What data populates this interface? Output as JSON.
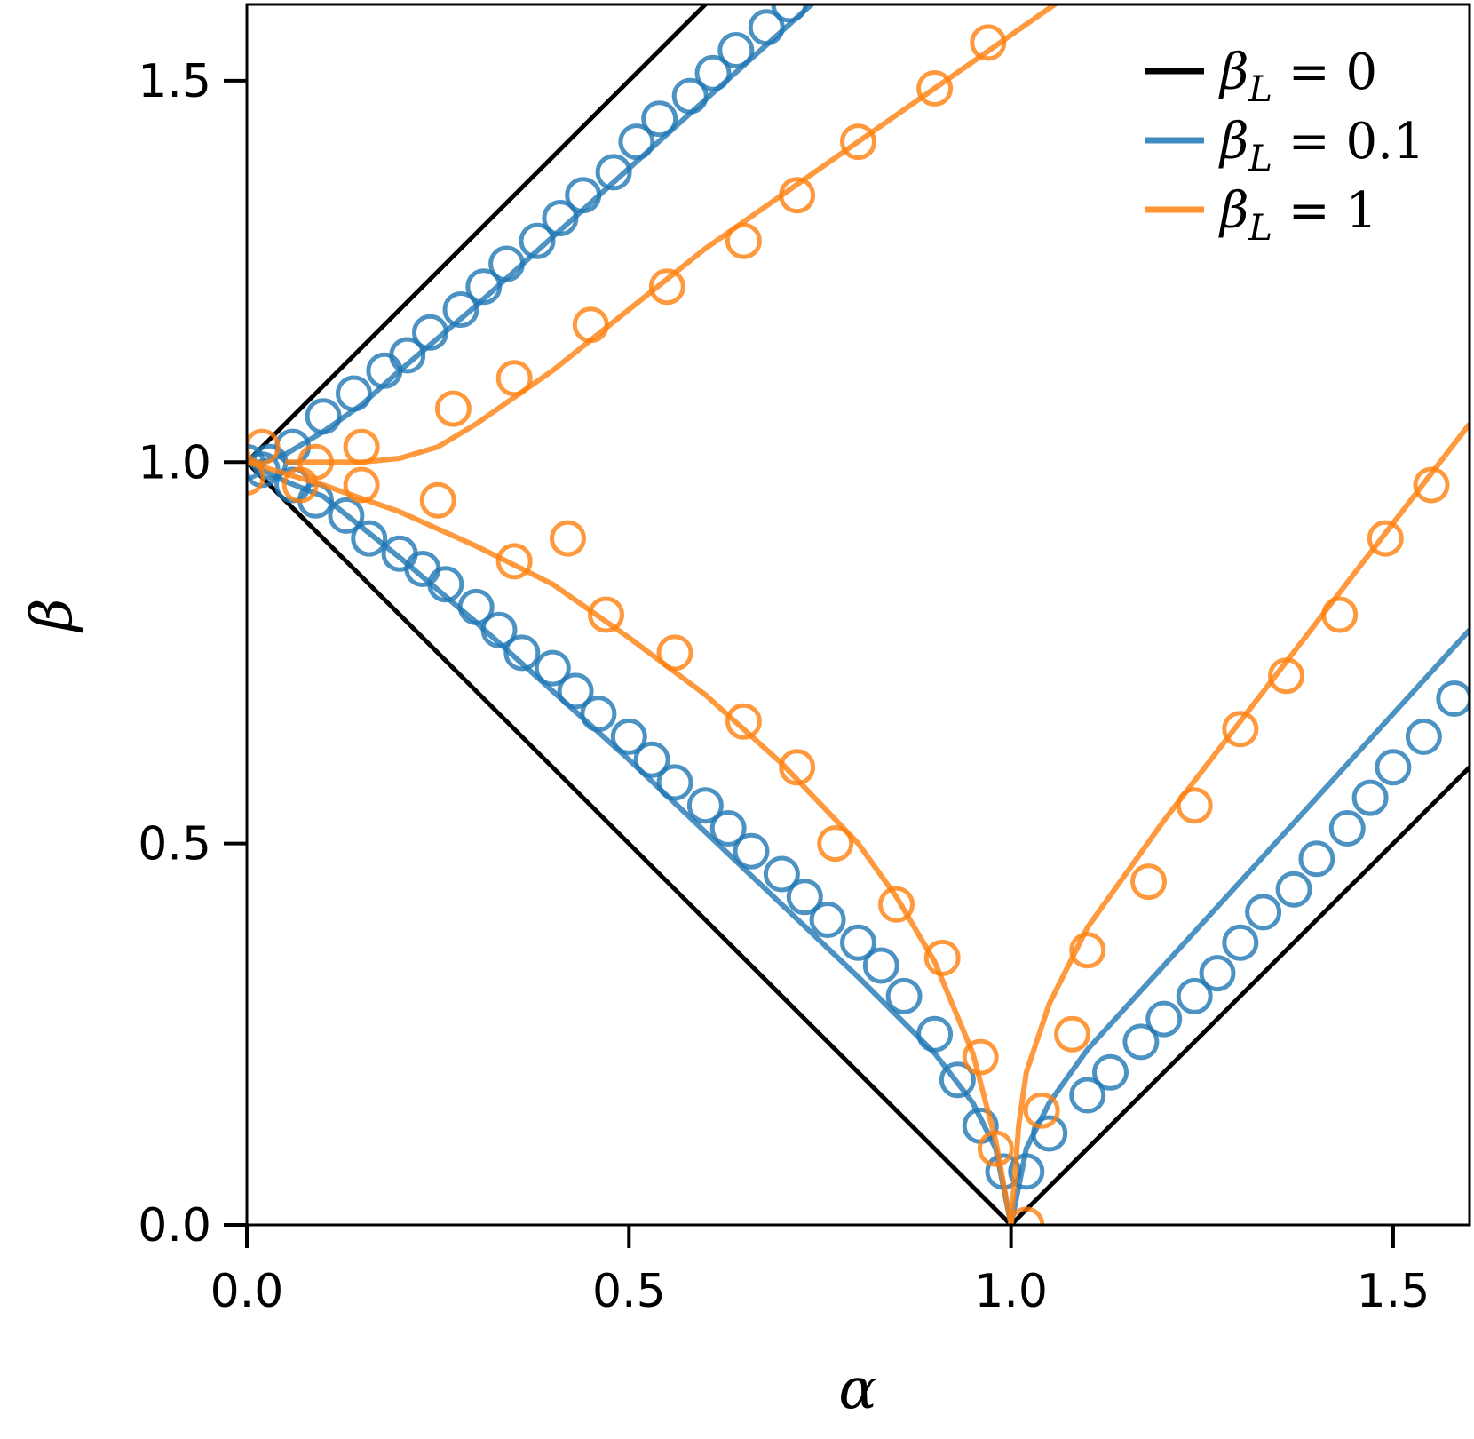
{
  "chart_data": {
    "type": "line",
    "xlabel": "α",
    "ylabel": "β",
    "xlim": [
      0,
      1.6
    ],
    "ylim": [
      0,
      1.6
    ],
    "xticks": [
      "0.0",
      "0.5",
      "1.0",
      "1.5"
    ],
    "yticks": [
      "0.0",
      "0.5",
      "1.0",
      "1.5"
    ],
    "grid": false,
    "legend_placement": "top-right",
    "series": [
      {
        "name": "β_L = 0",
        "legend": {
          "prefix": "β",
          "sub": "L",
          "rest": " = 0"
        },
        "color": "#000000",
        "lines": [
          {
            "x": [
              0,
              0.6
            ],
            "y": [
              1.0,
              1.6
            ]
          },
          {
            "x": [
              0,
              1.0
            ],
            "y": [
              1.0,
              0.0
            ]
          },
          {
            "x": [
              1.0,
              1.6
            ],
            "y": [
              0.0,
              0.6
            ]
          }
        ],
        "markers": []
      },
      {
        "name": "β_L = 0.1",
        "legend": {
          "prefix": "β",
          "sub": "L",
          "rest": " = 0.1"
        },
        "color": "#1f77b4",
        "lines": [
          {
            "x": [
              0.0,
              0.02,
              0.05,
              0.1,
              0.15,
              0.2,
              0.3,
              0.4,
              0.5,
              0.6,
              0.7,
              0.75,
              0.8
            ],
            "y": [
              1.0,
              1.0,
              1.01,
              1.04,
              1.075,
              1.12,
              1.205,
              1.295,
              1.385,
              1.475,
              1.565,
              1.61,
              1.655
            ]
          },
          {
            "x": [
              0.0,
              0.05,
              0.1,
              0.2,
              0.3,
              0.4,
              0.5,
              0.6,
              0.7,
              0.8,
              0.85,
              0.9,
              0.95,
              0.98,
              1.0
            ],
            "y": [
              1.0,
              0.975,
              0.955,
              0.875,
              0.79,
              0.7,
              0.61,
              0.515,
              0.42,
              0.325,
              0.275,
              0.225,
              0.16,
              0.1,
              0.0
            ]
          },
          {
            "x": [
              1.0,
              1.02,
              1.05,
              1.1,
              1.2,
              1.3,
              1.4,
              1.5,
              1.6
            ],
            "y": [
              0.0,
              0.1,
              0.16,
              0.23,
              0.34,
              0.45,
              0.56,
              0.67,
              0.78
            ]
          }
        ],
        "markers": [
          {
            "x": [
              0.0,
              0.03,
              0.06,
              0.1,
              0.14,
              0.18,
              0.21,
              0.24,
              0.28,
              0.31,
              0.34,
              0.38,
              0.41,
              0.44,
              0.48,
              0.51,
              0.54,
              0.58,
              0.61,
              0.64,
              0.68,
              0.71,
              0.74
            ],
            "y": [
              1.0,
              1.0,
              1.02,
              1.06,
              1.09,
              1.12,
              1.14,
              1.17,
              1.2,
              1.23,
              1.26,
              1.29,
              1.32,
              1.35,
              1.38,
              1.42,
              1.45,
              1.48,
              1.51,
              1.54,
              1.57,
              1.6,
              1.63
            ]
          },
          {
            "x": [
              0.02,
              0.06,
              0.09,
              0.13,
              0.16,
              0.2,
              0.23,
              0.26,
              0.3,
              0.33,
              0.36,
              0.4,
              0.43,
              0.46,
              0.5,
              0.53,
              0.56,
              0.6,
              0.63,
              0.66,
              0.7,
              0.73,
              0.76,
              0.8,
              0.83,
              0.86,
              0.9,
              0.93,
              0.96,
              0.99
            ],
            "y": [
              0.99,
              0.97,
              0.95,
              0.93,
              0.9,
              0.88,
              0.86,
              0.84,
              0.81,
              0.78,
              0.75,
              0.73,
              0.7,
              0.67,
              0.64,
              0.61,
              0.58,
              0.55,
              0.52,
              0.49,
              0.46,
              0.43,
              0.4,
              0.37,
              0.34,
              0.3,
              0.25,
              0.19,
              0.13,
              0.07
            ]
          },
          {
            "x": [
              1.02,
              1.05,
              1.1,
              1.13,
              1.17,
              1.2,
              1.24,
              1.27,
              1.3,
              1.33,
              1.37,
              1.4,
              1.44,
              1.47,
              1.5,
              1.54,
              1.58
            ],
            "y": [
              0.07,
              0.12,
              0.17,
              0.2,
              0.24,
              0.27,
              0.3,
              0.33,
              0.37,
              0.41,
              0.44,
              0.48,
              0.52,
              0.56,
              0.6,
              0.64,
              0.69
            ]
          }
        ]
      },
      {
        "name": "β_L = 1",
        "legend": {
          "prefix": "β",
          "sub": "L",
          "rest": " = 1"
        },
        "color": "#ff7f0e",
        "lines": [
          {
            "x": [
              0.05,
              0.1,
              0.15,
              0.2,
              0.25,
              0.3,
              0.4,
              0.5,
              0.6,
              0.7,
              0.8,
              0.9,
              1.0,
              1.1
            ],
            "y": [
              1.0,
              1.0,
              1.0,
              1.005,
              1.02,
              1.05,
              1.12,
              1.2,
              1.28,
              1.35,
              1.42,
              1.49,
              1.56,
              1.63
            ]
          },
          {
            "x": [
              0.0,
              0.1,
              0.2,
              0.3,
              0.4,
              0.5,
              0.6,
              0.7,
              0.8,
              0.85,
              0.9,
              0.95,
              0.98,
              1.0
            ],
            "y": [
              1.0,
              0.97,
              0.935,
              0.89,
              0.84,
              0.77,
              0.695,
              0.605,
              0.5,
              0.43,
              0.345,
              0.225,
              0.11,
              0.0
            ]
          },
          {
            "x": [
              1.0,
              1.01,
              1.02,
              1.05,
              1.1,
              1.2,
              1.3,
              1.4,
              1.5,
              1.6
            ],
            "y": [
              0.0,
              0.13,
              0.2,
              0.29,
              0.39,
              0.53,
              0.66,
              0.79,
              0.92,
              1.05
            ]
          }
        ],
        "markers": [
          {
            "x": [
              0.02,
              0.09,
              0.15,
              0.27,
              0.35,
              0.45,
              0.55,
              0.65,
              0.72,
              0.8,
              0.9,
              0.97
            ],
            "y": [
              1.02,
              1.0,
              1.02,
              1.07,
              1.11,
              1.18,
              1.23,
              1.29,
              1.35,
              1.42,
              1.49,
              1.55
            ]
          },
          {
            "x": [
              0.0,
              0.07,
              0.15,
              0.25,
              0.35,
              0.42,
              0.47,
              0.56,
              0.65,
              0.72,
              0.77,
              0.85,
              0.91,
              0.96,
              0.98
            ],
            "y": [
              0.98,
              0.97,
              0.97,
              0.95,
              0.87,
              0.9,
              0.8,
              0.75,
              0.66,
              0.6,
              0.5,
              0.42,
              0.35,
              0.22,
              0.1
            ]
          },
          {
            "x": [
              1.02,
              1.04,
              1.08,
              1.1,
              1.18,
              1.24,
              1.3,
              1.36,
              1.43,
              1.49,
              1.55
            ],
            "y": [
              0.0,
              0.15,
              0.25,
              0.36,
              0.45,
              0.55,
              0.65,
              0.72,
              0.8,
              0.9,
              0.97
            ]
          }
        ]
      }
    ]
  }
}
